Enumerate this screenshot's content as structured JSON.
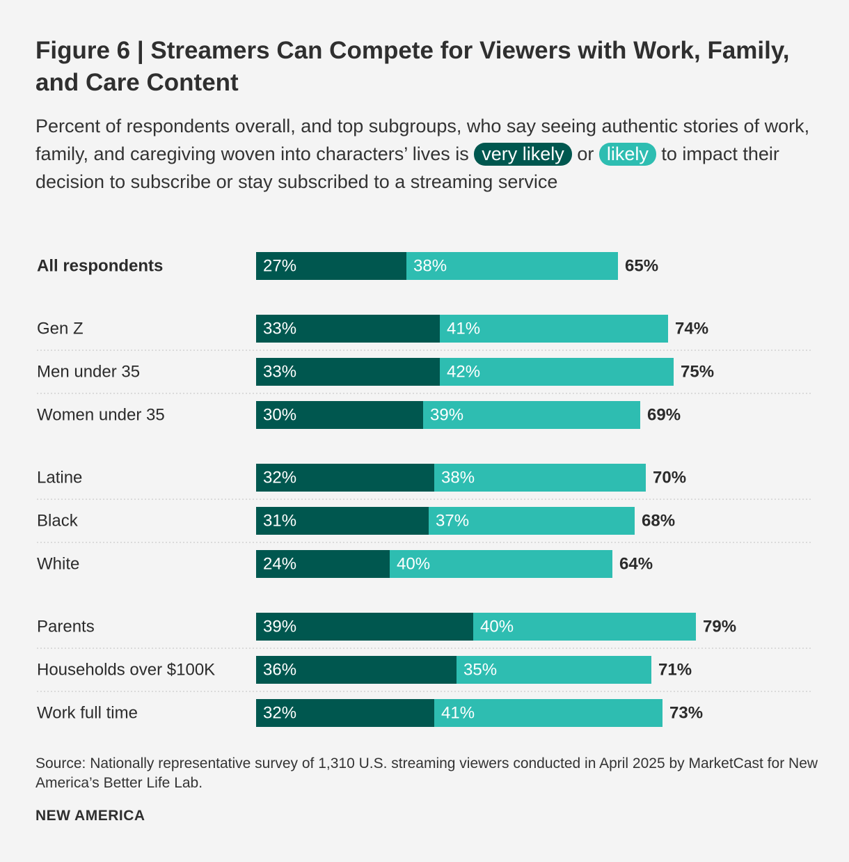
{
  "title": "Figure 6 | Streamers Can Compete for Viewers with Work, Family, and Care Content",
  "subtitle": {
    "part1": "Percent of respondents overall, and top subgroups, who say seeing authentic stories of work, family, and caregiving woven into characters’ lives is ",
    "very_likely": "very likely",
    "or": " or ",
    "likely": "likely",
    "part2": " to impact their decision to subscribe or stay subscribed to a streaming service"
  },
  "colors": {
    "very_likely": "#00574f",
    "likely": "#2ebdb1",
    "divider": "#c9c9c9"
  },
  "chart_data": {
    "type": "bar",
    "orientation": "horizontal",
    "stacked": true,
    "series_names": [
      "very likely",
      "likely"
    ],
    "groups": [
      {
        "rows": [
          {
            "label": "All respondents",
            "bold": true,
            "very_likely": 27,
            "likely": 38,
            "total": 65
          }
        ]
      },
      {
        "rows": [
          {
            "label": "Gen Z",
            "very_likely": 33,
            "likely": 41,
            "total": 74
          },
          {
            "label": "Men under 35",
            "very_likely": 33,
            "likely": 42,
            "total": 75
          },
          {
            "label": "Women under 35",
            "very_likely": 30,
            "likely": 39,
            "total": 69
          }
        ]
      },
      {
        "rows": [
          {
            "label": "Latine",
            "very_likely": 32,
            "likely": 38,
            "total": 70
          },
          {
            "label": "Black",
            "very_likely": 31,
            "likely": 37,
            "total": 68
          },
          {
            "label": "White",
            "very_likely": 24,
            "likely": 40,
            "total": 64
          }
        ]
      },
      {
        "rows": [
          {
            "label": "Parents",
            "very_likely": 39,
            "likely": 40,
            "total": 79
          },
          {
            "label": "Households over $100K",
            "very_likely": 36,
            "likely": 35,
            "total": 71
          },
          {
            "label": "Work full time",
            "very_likely": 32,
            "likely": 41,
            "total": 73
          }
        ]
      }
    ]
  },
  "source": "Source: Nationally representative survey of 1,310 U.S. streaming viewers conducted in April 2025 by MarketCast for New America’s Better Life Lab.",
  "brand": "NEW AMERICA"
}
